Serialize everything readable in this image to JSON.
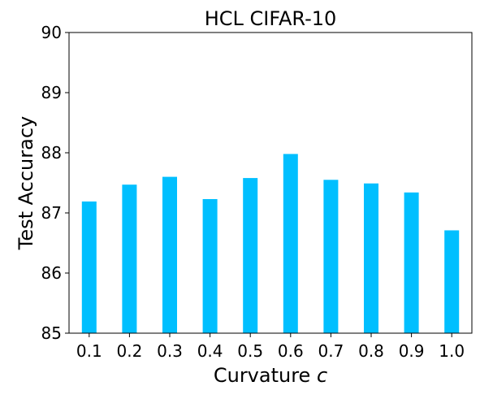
{
  "chart_data": {
    "type": "bar",
    "title": "HCL CIFAR-10",
    "xlabel_text": "Curvature ",
    "xlabel_var": "c",
    "ylabel": "Test Accuracy",
    "categories": [
      "0.1",
      "0.2",
      "0.3",
      "0.4",
      "0.5",
      "0.6",
      "0.7",
      "0.8",
      "0.9",
      "1.0"
    ],
    "values": [
      87.19,
      87.47,
      87.6,
      87.23,
      87.58,
      87.98,
      87.55,
      87.49,
      87.34,
      86.71
    ],
    "ylim": [
      85,
      90
    ],
    "yticks": [
      "85",
      "86",
      "87",
      "88",
      "89",
      "90"
    ],
    "grid": false,
    "legend": false,
    "bar_color": "#00bfff"
  }
}
